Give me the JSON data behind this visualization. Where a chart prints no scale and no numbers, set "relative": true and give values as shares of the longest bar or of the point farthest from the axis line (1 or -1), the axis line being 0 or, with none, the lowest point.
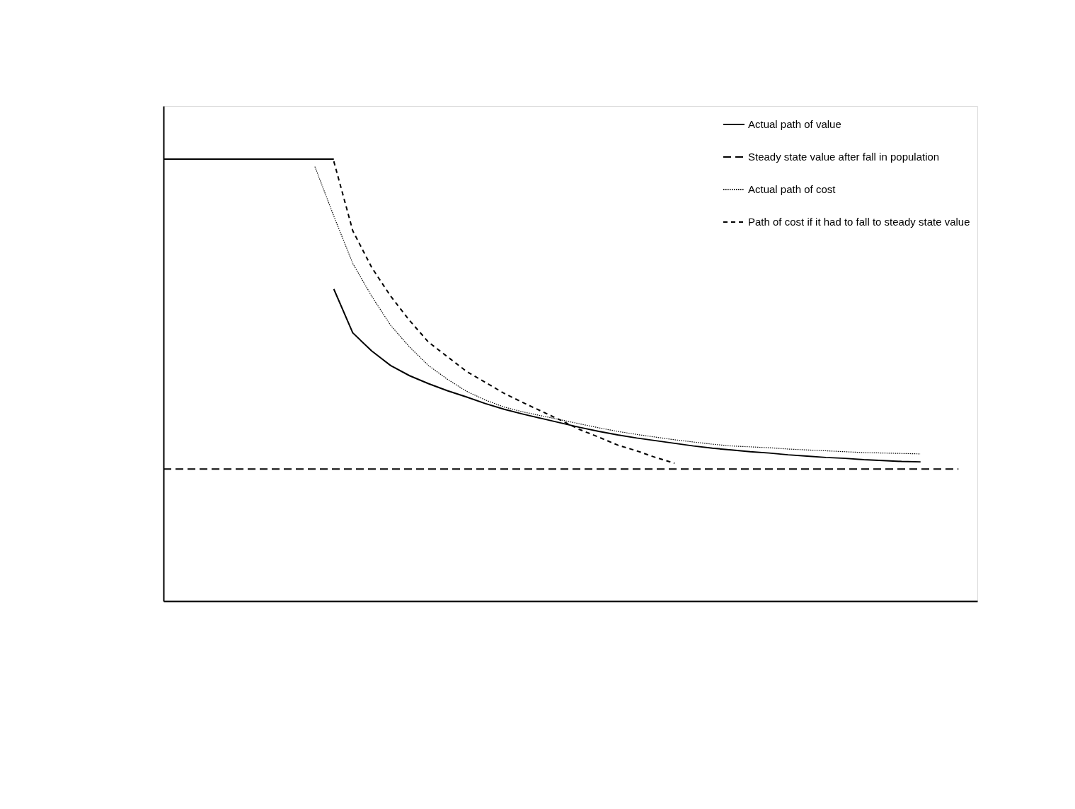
{
  "chart_data": {
    "type": "line",
    "relative": true,
    "grid": false,
    "legend": "top right",
    "categories": [
      null,
      null,
      null,
      null,
      null,
      null,
      null,
      null,
      null,
      null,
      null,
      null,
      null,
      null,
      null,
      null,
      null,
      null,
      null,
      null,
      null,
      null,
      null,
      null,
      null,
      null,
      null,
      null,
      null,
      null,
      null,
      null,
      null,
      null,
      null,
      null,
      null,
      null,
      null,
      null,
      null,
      null,
      null
    ],
    "series": [
      {
        "color": "#000000",
        "line_style": "solid",
        "values": [
          1.0,
          1.0,
          1.0,
          1.0,
          1.0,
          1.0,
          1.0,
          1.0,
          1.0,
          1.0,
          null,
          null,
          null,
          null,
          null,
          null,
          null,
          null,
          null,
          null,
          null,
          null,
          null,
          null,
          null,
          null,
          null,
          null,
          null,
          null,
          null,
          null,
          null,
          null,
          null,
          null,
          null,
          null,
          null,
          null,
          null,
          null,
          null
        ]
      },
      {
        "name": "Actual path of value",
        "color": "#000000",
        "line_style": "solid",
        "values": [
          null,
          null,
          null,
          null,
          null,
          null,
          null,
          null,
          null,
          0.706,
          0.607,
          0.566,
          0.533,
          0.51,
          0.492,
          0.476,
          0.462,
          0.447,
          0.434,
          0.423,
          0.413,
          0.403,
          0.393,
          0.384,
          0.376,
          0.369,
          0.363,
          0.357,
          0.351,
          0.346,
          0.342,
          0.338,
          0.335,
          0.331,
          0.328,
          0.325,
          0.323,
          0.32,
          0.318,
          0.316,
          0.315,
          null,
          null
        ]
      },
      {
        "name": "Steady state value after fall in population",
        "color": "#000000",
        "line_style": "dashed",
        "values": [
          0.299,
          0.299,
          0.299,
          0.299,
          0.299,
          0.299,
          0.299,
          0.299,
          0.299,
          0.299,
          0.299,
          0.299,
          0.299,
          0.299,
          0.299,
          0.299,
          0.299,
          0.299,
          0.299,
          0.299,
          0.299,
          0.299,
          0.299,
          0.299,
          0.299,
          0.299,
          0.299,
          0.299,
          0.299,
          0.299,
          0.299,
          0.299,
          0.299,
          0.299,
          0.299,
          0.299,
          0.299,
          0.299,
          0.299,
          0.299,
          0.299,
          0.299,
          0.299
        ]
      },
      {
        "name": "Actual path of cost",
        "color": "#000000",
        "line_style": "dotted",
        "values": [
          null,
          null,
          null,
          null,
          null,
          null,
          null,
          null,
          0.983,
          0.871,
          0.764,
          0.69,
          0.624,
          0.575,
          0.533,
          0.502,
          0.475,
          0.455,
          0.439,
          0.428,
          0.419,
          0.41,
          0.401,
          0.392,
          0.384,
          0.377,
          0.371,
          0.365,
          0.36,
          0.355,
          0.351,
          0.349,
          0.347,
          0.344,
          0.342,
          0.34,
          0.338,
          0.336,
          0.335,
          0.334,
          0.333,
          null,
          null
        ]
      },
      {
        "name": "Path of cost if it had to fall to steady state value",
        "color": "#000000",
        "line_style": "dashed",
        "values": [
          null,
          null,
          null,
          null,
          null,
          null,
          null,
          null,
          null,
          0.995,
          0.838,
          0.755,
          0.69,
          0.635,
          0.586,
          0.553,
          0.52,
          0.495,
          0.47,
          0.449,
          0.429,
          0.409,
          0.388,
          0.371,
          0.353,
          0.34,
          0.325,
          0.312,
          null,
          null,
          null,
          null,
          null,
          null,
          null,
          null,
          null,
          null,
          null,
          null,
          null,
          null,
          null
        ]
      }
    ]
  }
}
